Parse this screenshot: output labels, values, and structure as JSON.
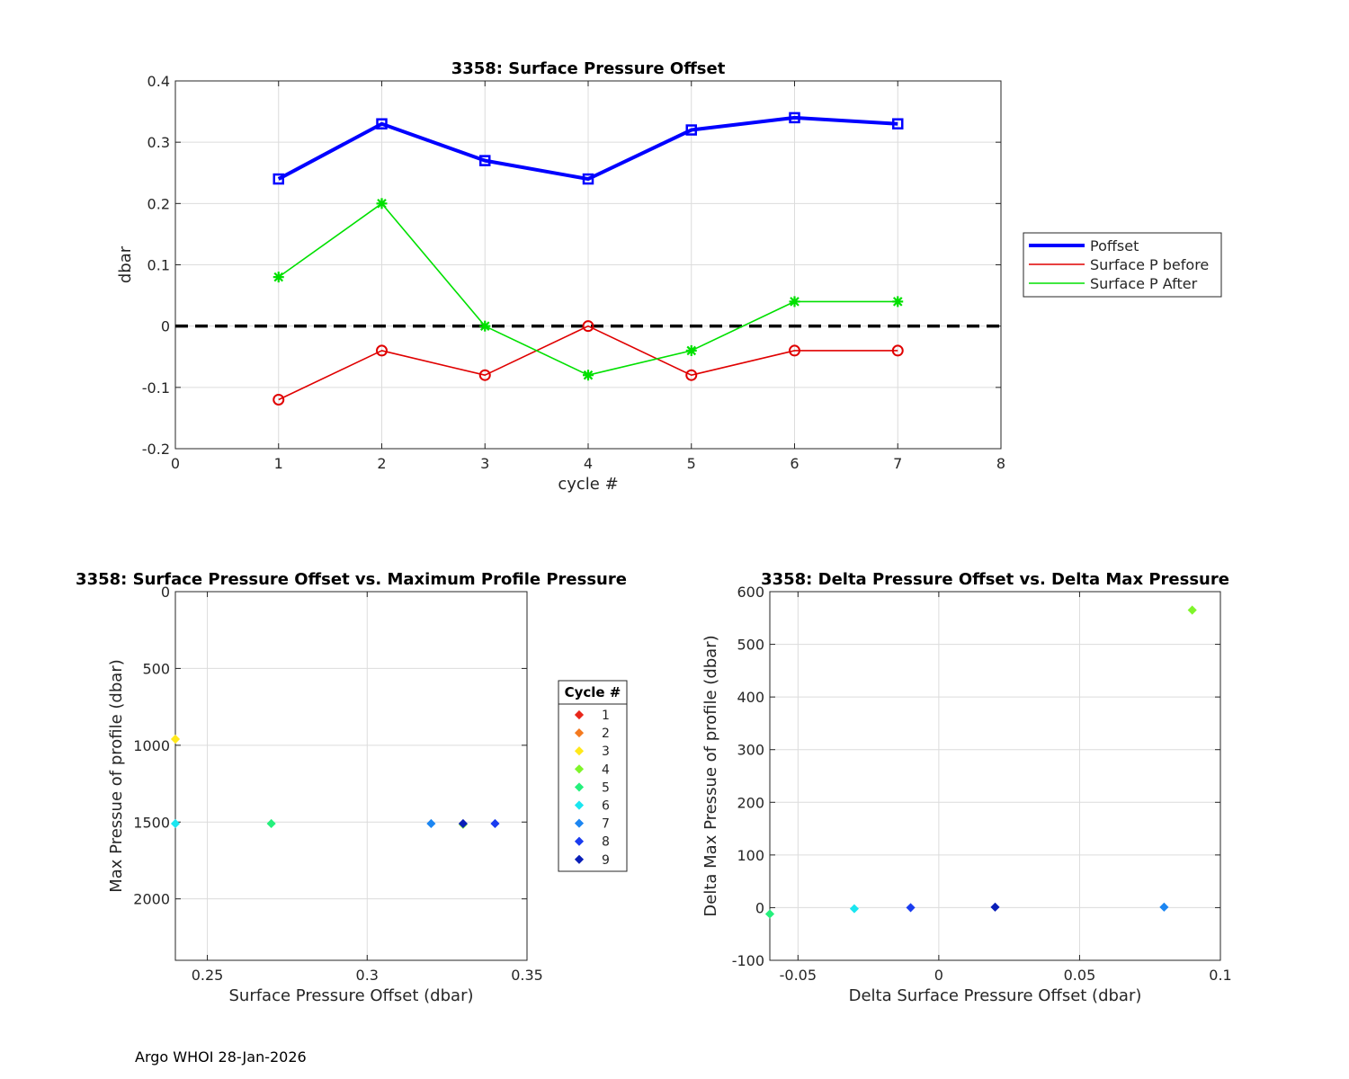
{
  "footer": "Argo WHOI 28-Jan-2026",
  "chart_data": [
    {
      "type": "line",
      "title": "3358: Surface Pressure Offset",
      "xlabel": "cycle #",
      "ylabel": "dbar",
      "xlim": [
        0,
        8
      ],
      "ylim": [
        -0.2,
        0.4
      ],
      "xticks": [
        0,
        1,
        2,
        3,
        4,
        5,
        6,
        7,
        8
      ],
      "yticks": [
        -0.2,
        -0.1,
        0,
        0.1,
        0.2,
        0.3,
        0.4
      ],
      "xtick_labels": [
        "0",
        "1",
        "2",
        "3",
        "4",
        "5",
        "6",
        "7",
        "8"
      ],
      "ytick_labels": [
        "-0.2",
        "-0.1",
        "0",
        "0.1",
        "0.2",
        "0.3",
        "0.4"
      ],
      "grid": true,
      "legend_position": "right",
      "x": [
        1,
        2,
        3,
        4,
        5,
        6,
        7
      ],
      "series": [
        {
          "name": "Poffset",
          "color": "#0000ff",
          "marker": "square",
          "values": [
            0.24,
            0.33,
            0.27,
            0.24,
            0.32,
            0.34,
            0.33
          ]
        },
        {
          "name": "Surface P before",
          "color": "#e00000",
          "marker": "circle",
          "values": [
            -0.12,
            -0.04,
            -0.08,
            0.0,
            -0.08,
            -0.04,
            -0.04
          ]
        },
        {
          "name": "Surface P After",
          "color": "#00e000",
          "marker": "star",
          "values": [
            0.08,
            0.2,
            0.0,
            -0.08,
            -0.04,
            0.04,
            0.04
          ]
        }
      ],
      "reference_line": {
        "y": 0,
        "style": "dashed",
        "color": "#000000"
      }
    },
    {
      "type": "scatter",
      "title": "3358: Surface Pressure Offset vs. Maximum Profile Pressure",
      "xlabel": "Surface Pressure Offset (dbar)",
      "ylabel": "Max Pressue of profile (dbar)",
      "xlim": [
        0.24,
        0.35
      ],
      "ylim": [
        0,
        2400
      ],
      "y_reversed": true,
      "xticks": [
        0.25,
        0.3,
        0.35
      ],
      "yticks": [
        0,
        500,
        1000,
        1500,
        2000
      ],
      "xtick_labels": [
        "0.25",
        "0.3",
        "0.35"
      ],
      "ytick_labels": [
        "0",
        "500",
        "1000",
        "1500",
        "2000"
      ],
      "grid": true,
      "legend_title": "Cycle #",
      "legend_position": "right",
      "legend": [
        {
          "label": "1",
          "color": "#e8261a"
        },
        {
          "label": "2",
          "color": "#f47a1f"
        },
        {
          "label": "3",
          "color": "#ffe81a"
        },
        {
          "label": "4",
          "color": "#7ff52a"
        },
        {
          "label": "5",
          "color": "#25f07c"
        },
        {
          "label": "6",
          "color": "#1ae6f0"
        },
        {
          "label": "7",
          "color": "#1c86f2"
        },
        {
          "label": "8",
          "color": "#1a3cf0"
        },
        {
          "label": "9",
          "color": "#0a1fb8"
        }
      ],
      "points": [
        {
          "x": 0.24,
          "y": 960,
          "color": "#ffe81a"
        },
        {
          "x": 0.24,
          "y": 1510,
          "color": "#1ae6f0"
        },
        {
          "x": 0.27,
          "y": 1510,
          "color": "#25f07c"
        },
        {
          "x": 0.32,
          "y": 1510,
          "color": "#1c86f2"
        },
        {
          "x": 0.33,
          "y": 1515,
          "color": "#7ff52a"
        },
        {
          "x": 0.33,
          "y": 1510,
          "color": "#0a1fb8"
        },
        {
          "x": 0.34,
          "y": 1510,
          "color": "#1a3cf0"
        }
      ]
    },
    {
      "type": "scatter",
      "title": "3358: Delta Pressure Offset vs. Delta Max Pressure",
      "xlabel": "Delta Surface Pressure Offset (dbar)",
      "ylabel": "Delta Max Pressue of profile (dbar)",
      "xlim": [
        -0.06,
        0.1
      ],
      "ylim": [
        -100,
        600
      ],
      "xticks": [
        -0.05,
        0,
        0.05,
        0.1
      ],
      "yticks": [
        -100,
        0,
        100,
        200,
        300,
        400,
        500,
        600
      ],
      "xtick_labels": [
        "-0.05",
        "0",
        "0.05",
        "0.1"
      ],
      "ytick_labels": [
        "-100",
        "0",
        "100",
        "200",
        "300",
        "400",
        "500",
        "600"
      ],
      "grid": true,
      "points": [
        {
          "x": 0.09,
          "y": 565,
          "color": "#7ff52a"
        },
        {
          "x": -0.06,
          "y": -12,
          "color": "#25f07c"
        },
        {
          "x": -0.03,
          "y": -2,
          "color": "#1ae6f0"
        },
        {
          "x": -0.01,
          "y": 0,
          "color": "#1a3cf0"
        },
        {
          "x": 0.02,
          "y": 1,
          "color": "#0a1fb8"
        },
        {
          "x": 0.08,
          "y": 1,
          "color": "#1c86f2"
        }
      ]
    }
  ]
}
